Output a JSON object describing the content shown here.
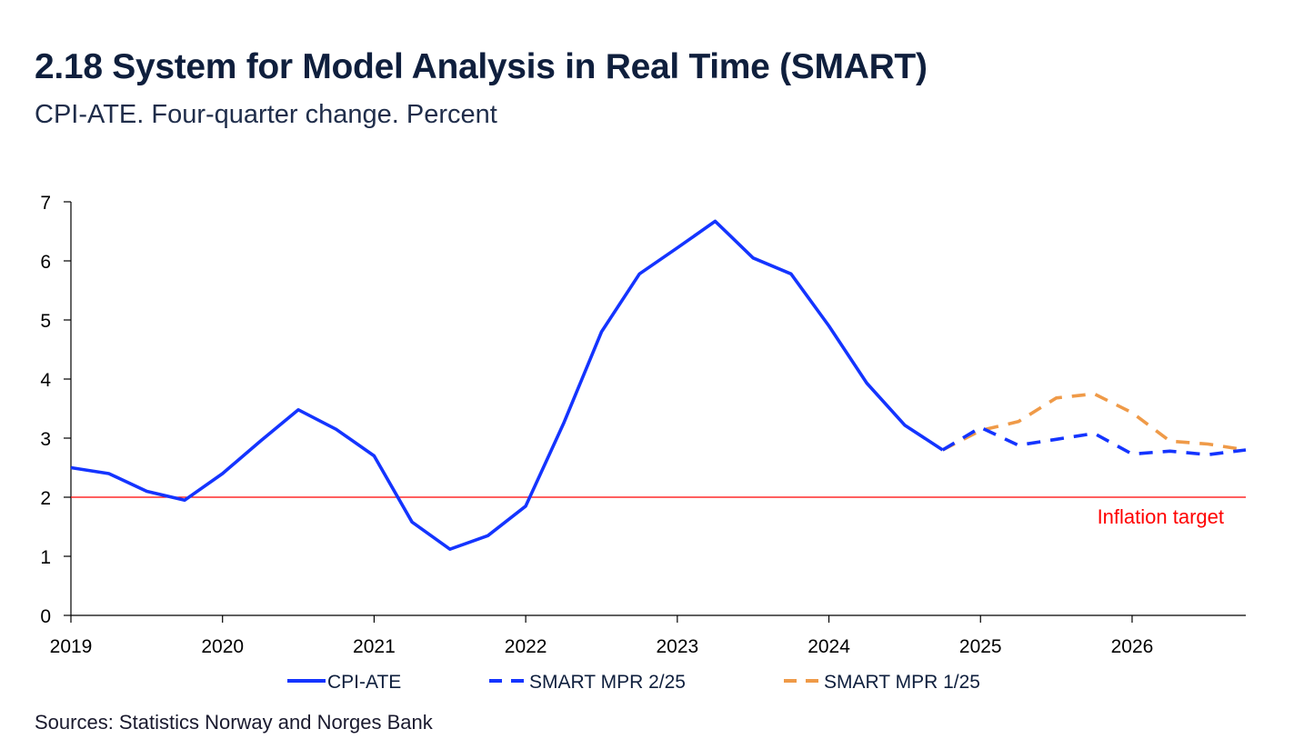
{
  "title": "2.18 System for Model Analysis in Real Time (SMART)",
  "subtitle": "CPI-ATE. Four-quarter change. Percent",
  "source": "Sources: Statistics Norway and  Norges Bank",
  "chart_data": {
    "type": "line",
    "title": "2.18 System for Model Analysis in Real Time (SMART)",
    "subtitle": "CPI-ATE. Four-quarter change. Percent",
    "xlim": [
      2019.0,
      2026.75
    ],
    "ylim": [
      0,
      7
    ],
    "yticks": [
      "0",
      "1",
      "2",
      "3",
      "4",
      "5",
      "6",
      "7"
    ],
    "xticks": [
      {
        "x": 2019,
        "label": "2019"
      },
      {
        "x": 2020,
        "label": "2020"
      },
      {
        "x": 2021,
        "label": "2021"
      },
      {
        "x": 2022,
        "label": "2022"
      },
      {
        "x": 2023,
        "label": "2023"
      },
      {
        "x": 2024,
        "label": "2024"
      },
      {
        "x": 2025,
        "label": "2025"
      },
      {
        "x": 2026,
        "label": "2026"
      }
    ],
    "grid": false,
    "legend_position": "bottom",
    "series": [
      {
        "name": "CPI-ATE",
        "color": "#1434ff",
        "style": "solid",
        "points": [
          [
            2019.0,
            2.5
          ],
          [
            2019.25,
            2.4
          ],
          [
            2019.5,
            2.1
          ],
          [
            2019.75,
            1.95
          ],
          [
            2020.0,
            2.4
          ],
          [
            2020.25,
            2.95
          ],
          [
            2020.5,
            3.48
          ],
          [
            2020.75,
            3.15
          ],
          [
            2021.0,
            2.7
          ],
          [
            2021.25,
            1.58
          ],
          [
            2021.5,
            1.12
          ],
          [
            2021.75,
            1.35
          ],
          [
            2022.0,
            1.85
          ],
          [
            2022.25,
            3.25
          ],
          [
            2022.5,
            4.8
          ],
          [
            2022.75,
            5.78
          ],
          [
            2023.0,
            6.22
          ],
          [
            2023.25,
            6.67
          ],
          [
            2023.5,
            6.05
          ],
          [
            2023.75,
            5.78
          ],
          [
            2024.0,
            4.9
          ],
          [
            2024.25,
            3.93
          ],
          [
            2024.5,
            3.22
          ],
          [
            2024.75,
            2.8
          ]
        ]
      },
      {
        "name": "SMART MPR 2/25",
        "color": "#1434ff",
        "style": "dashed",
        "points": [
          [
            2024.75,
            2.8
          ],
          [
            2025.0,
            3.18
          ],
          [
            2025.25,
            2.88
          ],
          [
            2025.5,
            2.98
          ],
          [
            2025.75,
            3.08
          ],
          [
            2026.0,
            2.73
          ],
          [
            2026.25,
            2.78
          ],
          [
            2026.5,
            2.72
          ],
          [
            2026.75,
            2.8
          ]
        ]
      },
      {
        "name": "SMART MPR 1/25",
        "color": "#ef9a48",
        "style": "dashed",
        "points": [
          [
            2024.75,
            2.8
          ],
          [
            2025.0,
            3.13
          ],
          [
            2025.25,
            3.28
          ],
          [
            2025.5,
            3.68
          ],
          [
            2025.75,
            3.75
          ],
          [
            2026.0,
            3.43
          ],
          [
            2026.25,
            2.95
          ],
          [
            2026.5,
            2.9
          ],
          [
            2026.75,
            2.8
          ]
        ]
      }
    ],
    "reference_line": {
      "y": 2,
      "label": "Inflation target",
      "color": "#ff0000"
    }
  }
}
